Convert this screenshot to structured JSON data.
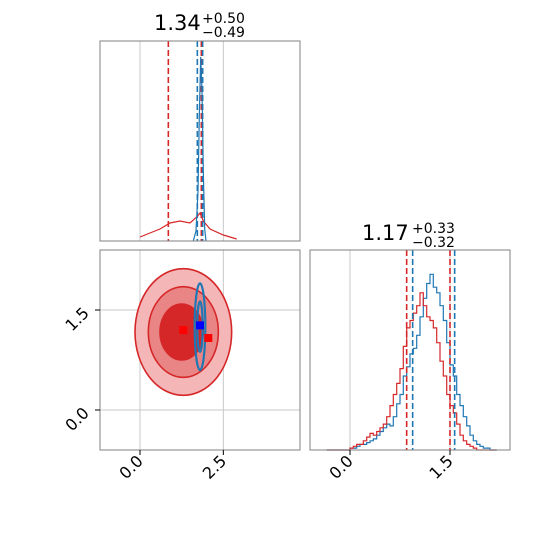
{
  "colors": {
    "red": "#d62728",
    "blue": "#1f77b4",
    "red_fill_outer": "#f4b6b6",
    "red_fill_mid": "#ea8585",
    "red_fill_inner": "#d62728",
    "red_marker": "#ff0000",
    "blue_marker": "#0000ff",
    "grid": "#c8c8c8",
    "frame": "#808080"
  },
  "chart_data": {
    "type": "corner",
    "parameters": [
      {
        "title": {
          "median": "1.34",
          "plus": "+0.50",
          "minus": "−0.49"
        },
        "range": [
          -1.2,
          4.8
        ],
        "ticks": [
          {
            "value": 0.0,
            "label": "0.0"
          },
          {
            "value": 2.5,
            "label": "2.5"
          }
        ],
        "quantile_lines": {
          "red": [
            0.85,
            1.84
          ],
          "blue": [
            1.72,
            1.88
          ]
        }
      },
      {
        "title": {
          "median": "1.17",
          "plus": "+0.33",
          "minus": "−0.32"
        },
        "range": [
          -0.6,
          2.4
        ],
        "ticks": [
          {
            "value": 0.0,
            "label": "0.0"
          },
          {
            "value": 1.5,
            "label": "1.5"
          }
        ],
        "quantile_lines": {
          "red": [
            0.85,
            1.5
          ],
          "blue": [
            0.94,
            1.57
          ]
        }
      }
    ],
    "histogram_1d": {
      "red": [
        {
          "x": 0.0,
          "y": 0.02
        },
        {
          "x": 0.3,
          "y": 0.04
        },
        {
          "x": 0.6,
          "y": 0.06
        },
        {
          "x": 0.9,
          "y": 0.09
        },
        {
          "x": 1.2,
          "y": 0.1
        },
        {
          "x": 1.5,
          "y": 0.09
        },
        {
          "x": 1.7,
          "y": 0.12
        },
        {
          "x": 1.8,
          "y": 0.14
        },
        {
          "x": 1.9,
          "y": 0.1
        },
        {
          "x": 2.1,
          "y": 0.06
        },
        {
          "x": 2.5,
          "y": 0.03
        },
        {
          "x": 2.9,
          "y": 0.01
        }
      ],
      "blue": [
        {
          "x": 1.6,
          "y": 0.0
        },
        {
          "x": 1.68,
          "y": 0.05
        },
        {
          "x": 1.74,
          "y": 0.25
        },
        {
          "x": 1.78,
          "y": 0.62
        },
        {
          "x": 1.82,
          "y": 0.92
        },
        {
          "x": 1.86,
          "y": 0.75
        },
        {
          "x": 1.9,
          "y": 0.35
        },
        {
          "x": 1.94,
          "y": 0.06
        },
        {
          "x": 1.98,
          "y": 0.0
        }
      ]
    },
    "histogram_2nd": {
      "bins": [
        -0.35,
        -0.3,
        -0.25,
        -0.2,
        -0.15,
        -0.1,
        -0.05,
        0.0,
        0.05,
        0.1,
        0.15,
        0.2,
        0.25,
        0.3,
        0.35,
        0.4,
        0.45,
        0.5,
        0.55,
        0.6,
        0.65,
        0.7,
        0.75,
        0.8,
        0.85,
        0.9,
        0.95,
        1.0,
        1.05,
        1.1,
        1.15,
        1.2,
        1.25,
        1.3,
        1.35,
        1.4,
        1.45,
        1.5,
        1.55,
        1.6,
        1.65,
        1.7,
        1.75,
        1.8,
        1.85,
        1.9,
        1.95,
        2.0,
        2.05,
        2.1,
        2.15,
        2.2
      ],
      "blue": [
        0.0,
        0.0,
        0.0,
        0.0,
        0.0,
        0.0,
        0.0,
        0.01,
        0.01,
        0.02,
        0.03,
        0.03,
        0.04,
        0.05,
        0.06,
        0.08,
        0.1,
        0.12,
        0.14,
        0.13,
        0.18,
        0.25,
        0.3,
        0.4,
        0.45,
        0.52,
        0.55,
        0.62,
        0.72,
        0.82,
        0.9,
        0.95,
        0.88,
        0.85,
        0.78,
        0.7,
        0.58,
        0.46,
        0.4,
        0.3,
        0.24,
        0.18,
        0.13,
        0.08,
        0.05,
        0.03,
        0.02,
        0.01,
        0.01,
        0.0,
        0.0
      ],
      "red": [
        0.0,
        0.0,
        0.0,
        0.0,
        0.0,
        0.0,
        0.0,
        0.01,
        0.02,
        0.03,
        0.03,
        0.05,
        0.07,
        0.09,
        0.08,
        0.1,
        0.12,
        0.14,
        0.18,
        0.24,
        0.3,
        0.36,
        0.44,
        0.56,
        0.66,
        0.7,
        0.74,
        0.78,
        0.85,
        0.78,
        0.72,
        0.7,
        0.66,
        0.58,
        0.48,
        0.4,
        0.3,
        0.24,
        0.2,
        0.14,
        0.08,
        0.05,
        0.03,
        0.02,
        0.01,
        0.0,
        0.0,
        0.0,
        0.0,
        0.0,
        0.0
      ]
    },
    "scatter_2d": {
      "red_contours": [
        {
          "cx": 1.3,
          "cy": 1.17,
          "rx": 1.45,
          "ry": 0.95,
          "level": "outer"
        },
        {
          "cx": 1.3,
          "cy": 1.17,
          "rx": 1.05,
          "ry": 0.68,
          "level": "mid"
        },
        {
          "cx": 1.25,
          "cy": 1.17,
          "rx": 0.65,
          "ry": 0.42,
          "level": "inner"
        }
      ],
      "blue_contours": [
        {
          "cx": 1.8,
          "cy": 1.25,
          "rx": 0.16,
          "ry": 0.65
        },
        {
          "cx": 1.8,
          "cy": 1.25,
          "rx": 0.08,
          "ry": 0.38
        }
      ],
      "markers": [
        {
          "x": 1.3,
          "y": 1.2,
          "color": "red"
        },
        {
          "x": 2.05,
          "y": 1.08,
          "color": "red"
        },
        {
          "x": 1.8,
          "y": 1.27,
          "color": "blue"
        }
      ]
    }
  }
}
